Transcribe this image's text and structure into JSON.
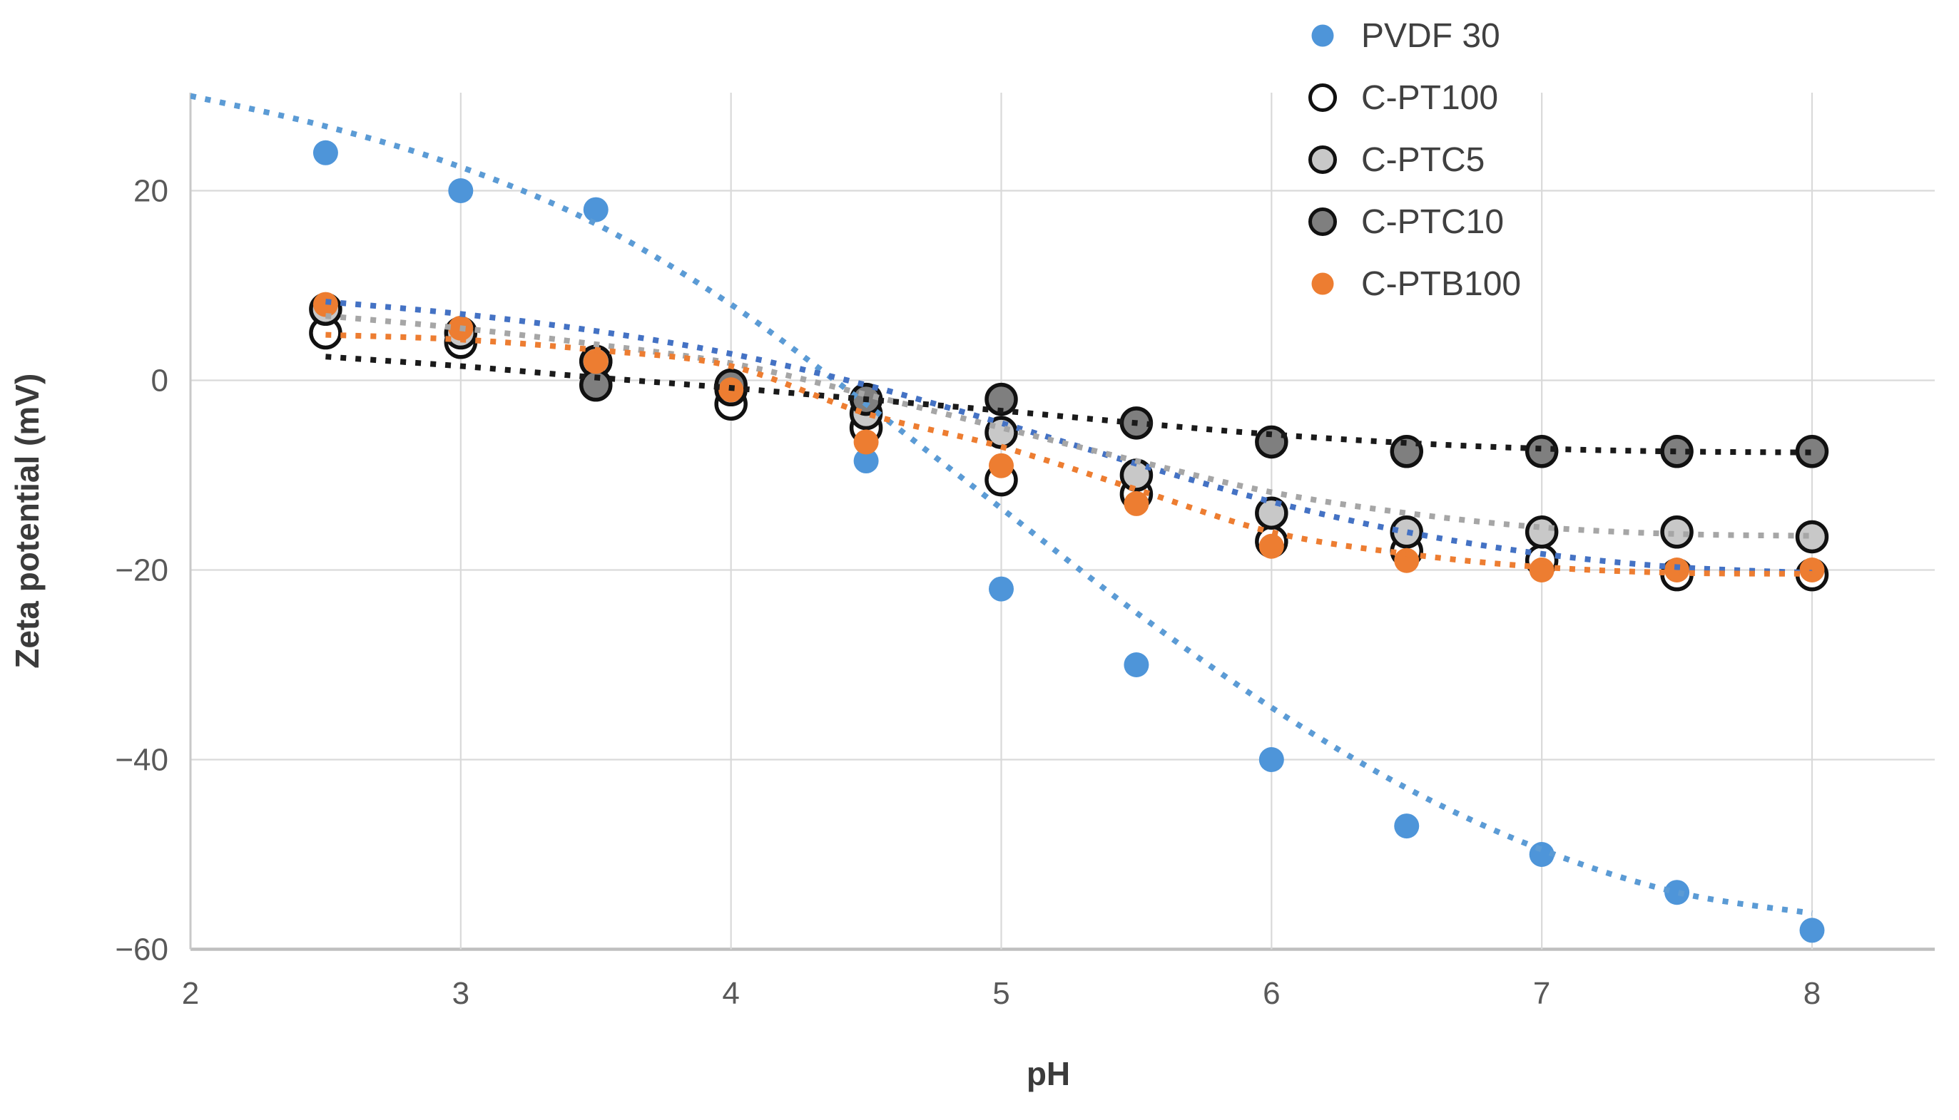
{
  "chart_data": {
    "type": "scatter",
    "title": "",
    "xlabel": "pH",
    "ylabel": "Zeta potential (mV)",
    "xlim": [
      2,
      8
    ],
    "ylim": [
      -62,
      30
    ],
    "grid": true,
    "legend_position": "top-right",
    "x_ticks": [
      {
        "value": 2,
        "label": "2"
      },
      {
        "value": 3,
        "label": "3"
      },
      {
        "value": 4,
        "label": "4"
      },
      {
        "value": 5,
        "label": "5"
      },
      {
        "value": 6,
        "label": "6"
      },
      {
        "value": 7,
        "label": "7"
      },
      {
        "value": 8,
        "label": "8"
      }
    ],
    "y_ticks": [
      {
        "value": 20,
        "label": "20"
      },
      {
        "value": 0,
        "label": "0"
      },
      {
        "value": -20,
        "label": "−20"
      },
      {
        "value": -40,
        "label": "−40"
      },
      {
        "value": -60,
        "label": "−60"
      }
    ],
    "x": [
      2.5,
      3,
      3.5,
      4,
      4.5,
      5,
      5.5,
      6,
      6.5,
      7,
      7.5,
      8
    ],
    "series": [
      {
        "name": "PVDF 30",
        "marker": "filled-circle",
        "color": "#4E95D9",
        "trend_color": "#5B9BD5",
        "values": [
          24,
          20,
          18,
          null,
          -8.5,
          -22,
          -30,
          -40,
          -47,
          -50,
          -54,
          -58
        ],
        "trend": [
          [
            2,
            30
          ],
          [
            2.5,
            26.8
          ],
          [
            3,
            22.5
          ],
          [
            3.5,
            16.5
          ],
          [
            4,
            8
          ],
          [
            4.5,
            -2.5
          ],
          [
            5,
            -13.5
          ],
          [
            5.5,
            -24.5
          ],
          [
            6,
            -34.5
          ],
          [
            6.5,
            -43
          ],
          [
            7,
            -49.5
          ],
          [
            7.5,
            -54
          ],
          [
            8,
            -56.2
          ]
        ]
      },
      {
        "name": "C-PT100",
        "marker": "open-circle",
        "color": "#FFFFFF",
        "edge": "#111111",
        "trend_color": "#4472C4",
        "values": [
          5,
          4,
          2,
          -2.5,
          -5,
          -10.5,
          -12,
          -17,
          -18,
          -19,
          -20.5,
          -20.5
        ],
        "trend": [
          [
            2.5,
            8.3
          ],
          [
            3,
            7
          ],
          [
            3.5,
            5.2
          ],
          [
            4,
            2.8
          ],
          [
            4.5,
            -0.5
          ],
          [
            5,
            -4.5
          ],
          [
            5.5,
            -8.8
          ],
          [
            6,
            -12.8
          ],
          [
            6.5,
            -16
          ],
          [
            7,
            -18.3
          ],
          [
            7.5,
            -19.7
          ],
          [
            8,
            -20.3
          ]
        ]
      },
      {
        "name": "C-PTC5",
        "marker": "edged-circle",
        "color": "#C8C8C8",
        "edge": "#111111",
        "trend_color": "#A6A6A6",
        "values": [
          7.5,
          5,
          2,
          -1,
          -3.5,
          -5.5,
          -10,
          -14,
          -16,
          -16,
          -16,
          -16.5
        ],
        "trend": [
          [
            2.5,
            6.8
          ],
          [
            3,
            5.5
          ],
          [
            3.5,
            3.8
          ],
          [
            4,
            1.8
          ],
          [
            4.5,
            -1.5
          ],
          [
            5,
            -5
          ],
          [
            5.5,
            -8.5
          ],
          [
            6,
            -11.8
          ],
          [
            6.5,
            -14
          ],
          [
            7,
            -15.5
          ],
          [
            7.5,
            -16.2
          ],
          [
            8,
            -16.4
          ]
        ]
      },
      {
        "name": "C-PTC10",
        "marker": "edged-circle",
        "color": "#7F7F7F",
        "edge": "#111111",
        "trend_color": "#1A1A1A",
        "values": [
          null,
          null,
          -0.5,
          -0.5,
          -2,
          -2,
          -4.5,
          -6.5,
          -7.5,
          -7.5,
          -7.5,
          -7.5
        ],
        "trend": [
          [
            2.5,
            2.5
          ],
          [
            3,
            1.5
          ],
          [
            3.5,
            0.3
          ],
          [
            4,
            -0.8
          ],
          [
            4.5,
            -2
          ],
          [
            5,
            -3.2
          ],
          [
            5.5,
            -4.5
          ],
          [
            6,
            -5.7
          ],
          [
            6.5,
            -6.6
          ],
          [
            7,
            -7.2
          ],
          [
            7.5,
            -7.5
          ],
          [
            8,
            -7.6
          ]
        ]
      },
      {
        "name": "C-PTB100",
        "marker": "filled-circle",
        "color": "#ED7D31",
        "trend_color": "#ED7D31",
        "values": [
          8,
          5.5,
          2,
          -1,
          -6.5,
          -9,
          -13,
          -17.5,
          -19,
          -20,
          -20,
          -20
        ],
        "trend": [
          [
            2.5,
            4.8
          ],
          [
            3,
            4.3
          ],
          [
            3.5,
            3.2
          ],
          [
            4,
            1.5
          ],
          [
            4.5,
            -3.5
          ],
          [
            5,
            -7
          ],
          [
            5.5,
            -11.5
          ],
          [
            6,
            -16
          ],
          [
            6.5,
            -18.3
          ],
          [
            7,
            -19.7
          ],
          [
            7.5,
            -20.3
          ],
          [
            8,
            -20.4
          ]
        ]
      }
    ],
    "styles": {
      "gridline_color": "#D9D9D9",
      "axis_line_color": "#BFBFBF",
      "plot_bg": "#FFFFFF"
    }
  }
}
